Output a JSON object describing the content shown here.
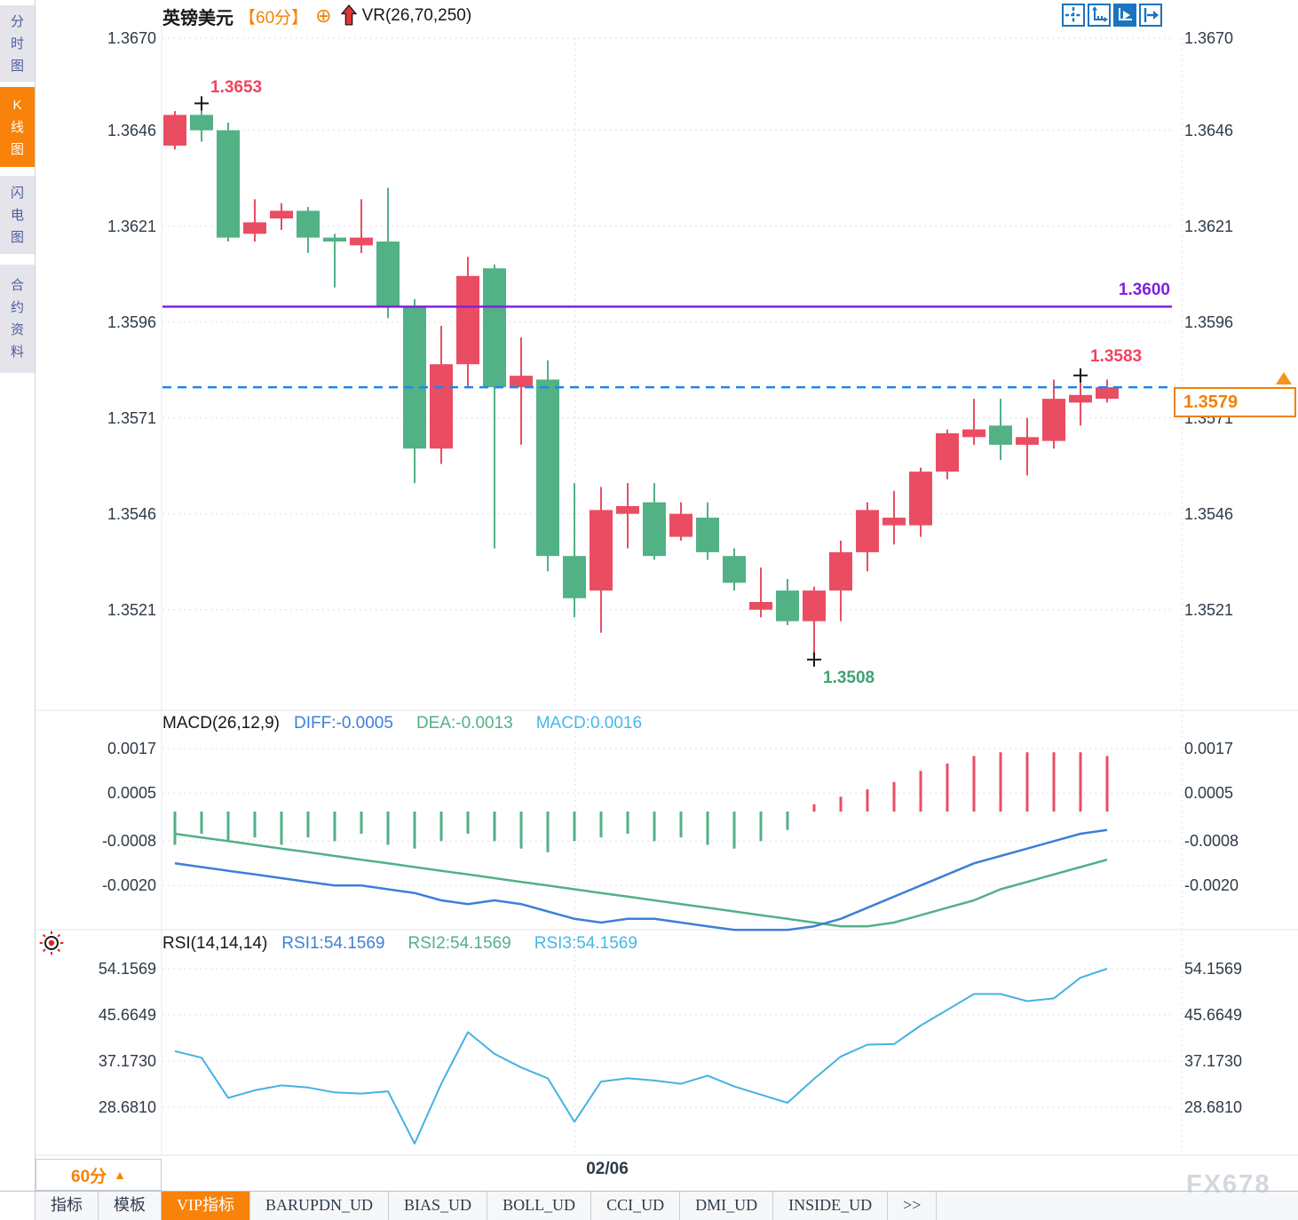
{
  "header": {
    "symbol": "英镑美元",
    "period": "【60分】",
    "link_icon": "⊕",
    "indicator": "VR(26,70,250)"
  },
  "toolbar": {
    "icons": [
      {
        "name": "crosshair-icon",
        "active": false
      },
      {
        "name": "axis-zoom-icon",
        "active": false
      },
      {
        "name": "auto-play-icon",
        "active": true
      },
      {
        "name": "jump-to-latest-icon",
        "active": false
      }
    ]
  },
  "sidebar": {
    "items": [
      {
        "label": "分时图",
        "active": false
      },
      {
        "label": "K线图",
        "active": true
      },
      {
        "label": "闪电图",
        "active": false
      },
      {
        "label": "合约资料",
        "active": false
      }
    ]
  },
  "price_panel": {
    "y_tick_labels": [
      "1.3670",
      "1.3646",
      "1.3621",
      "1.3596",
      "1.3571",
      "1.3546",
      "1.3521"
    ]
  },
  "annotations": {
    "high": "1.3653",
    "low": "1.3508",
    "swing_high": "1.3583",
    "hline": "1.3600",
    "current": "1.3579"
  },
  "macd_panel": {
    "title": "MACD(26,12,9)",
    "diff": "DIFF:-0.0005",
    "dea": "DEA:-0.0013",
    "macd": "MACD:0.0016",
    "y_tick_labels": [
      "0.0017",
      "0.0005",
      "-0.0008",
      "-0.0020"
    ]
  },
  "rsi_panel": {
    "title": "RSI(14,14,14)",
    "rsi1": "RSI1:54.1569",
    "rsi2": "RSI2:54.1569",
    "rsi3": "RSI3:54.1569",
    "y_tick_labels": [
      "54.1569",
      "45.6649",
      "37.1730",
      "28.6810"
    ]
  },
  "time_axis": {
    "date": "02/06",
    "period_button": "60分",
    "caret": "▲"
  },
  "bottom_tabs": {
    "items": [
      {
        "label": "指标",
        "active": false
      },
      {
        "label": "模板",
        "active": false
      },
      {
        "label": "VIP指标",
        "active": true
      },
      {
        "label": "BARUPDN_UD",
        "active": false
      },
      {
        "label": "BIAS_UD",
        "active": false
      },
      {
        "label": "BOLL_UD",
        "active": false
      },
      {
        "label": "CCI_UD",
        "active": false
      },
      {
        "label": "DMI_UD",
        "active": false
      },
      {
        "label": "INSIDE_UD",
        "active": false
      },
      {
        "label": ">>",
        "active": false
      }
    ]
  },
  "watermark": "FX678",
  "colors": {
    "up": "#ea4d62",
    "down": "#52b185",
    "accent": "#f8820a",
    "hline": "#7e22e0",
    "current_line": "#1d86f0",
    "diff_line": "#3d7fd8",
    "dea_line": "#52b185",
    "rsi_line": "#45b2e2"
  },
  "chart_data": [
    {
      "type": "candlestick",
      "title": "英镑美元 60分",
      "y_ticks": [
        1.367,
        1.3646,
        1.3621,
        1.3596,
        1.3571,
        1.3546,
        1.3521
      ],
      "ylim": [
        1.35,
        1.3673
      ],
      "hline_value": 1.36,
      "current_price": 1.3579,
      "high_marker": {
        "index": 1,
        "price": 1.3653
      },
      "low_marker": {
        "index": 24,
        "price": 1.3508
      },
      "swing_high_marker": {
        "index": 34,
        "price": 1.3583
      },
      "x_axis_label": "02/06",
      "ohlc": [
        [
          1.3642,
          1.3651,
          1.3641,
          1.365
        ],
        [
          1.365,
          1.3653,
          1.3643,
          1.3646
        ],
        [
          1.3646,
          1.3648,
          1.3617,
          1.3618
        ],
        [
          1.3619,
          1.3628,
          1.3617,
          1.3622
        ],
        [
          1.3623,
          1.3627,
          1.362,
          1.3625
        ],
        [
          1.3625,
          1.3626,
          1.3614,
          1.3618
        ],
        [
          1.3618,
          1.3619,
          1.3605,
          1.3617
        ],
        [
          1.3616,
          1.3628,
          1.3614,
          1.3618
        ],
        [
          1.3617,
          1.3631,
          1.3597,
          1.36
        ],
        [
          1.36,
          1.3602,
          1.3554,
          1.3563
        ],
        [
          1.3563,
          1.3595,
          1.3559,
          1.3585
        ],
        [
          1.3585,
          1.3613,
          1.3579,
          1.3608
        ],
        [
          1.361,
          1.3611,
          1.3537,
          1.3579
        ],
        [
          1.3579,
          1.3592,
          1.3564,
          1.3582
        ],
        [
          1.3581,
          1.3586,
          1.3531,
          1.3535
        ],
        [
          1.3535,
          1.3554,
          1.3519,
          1.3524
        ],
        [
          1.3526,
          1.3553,
          1.3515,
          1.3547
        ],
        [
          1.3546,
          1.3554,
          1.3537,
          1.3548
        ],
        [
          1.3549,
          1.3554,
          1.3534,
          1.3535
        ],
        [
          1.354,
          1.3549,
          1.3539,
          1.3546
        ],
        [
          1.3545,
          1.3549,
          1.3534,
          1.3536
        ],
        [
          1.3535,
          1.3537,
          1.3526,
          1.3528
        ],
        [
          1.3521,
          1.3532,
          1.3519,
          1.3523
        ],
        [
          1.3526,
          1.3529,
          1.3517,
          1.3518
        ],
        [
          1.3518,
          1.3527,
          1.3508,
          1.3526
        ],
        [
          1.3526,
          1.3539,
          1.3518,
          1.3536
        ],
        [
          1.3536,
          1.3549,
          1.3531,
          1.3547
        ],
        [
          1.3543,
          1.3552,
          1.3538,
          1.3545
        ],
        [
          1.3543,
          1.3558,
          1.354,
          1.3557
        ],
        [
          1.3557,
          1.3568,
          1.3555,
          1.3567
        ],
        [
          1.3566,
          1.3576,
          1.3564,
          1.3568
        ],
        [
          1.3569,
          1.3576,
          1.356,
          1.3564
        ],
        [
          1.3564,
          1.3571,
          1.3556,
          1.3566
        ],
        [
          1.3565,
          1.3581,
          1.3563,
          1.3576
        ],
        [
          1.3575,
          1.3583,
          1.3569,
          1.3577
        ],
        [
          1.3576,
          1.3581,
          1.3575,
          1.3579
        ]
      ]
    },
    {
      "type": "bar",
      "name": "MACD(26,12,9)",
      "y_ticks": [
        0.0017,
        0.0005,
        -0.0008,
        -0.002
      ],
      "histogram": [
        -0.0009,
        -0.0006,
        -0.0008,
        -0.0007,
        -0.0009,
        -0.0007,
        -0.0008,
        -0.0006,
        -0.0009,
        -0.001,
        -0.0008,
        -0.0006,
        -0.0008,
        -0.001,
        -0.0011,
        -0.0008,
        -0.0007,
        -0.0006,
        -0.0008,
        -0.0007,
        -0.0009,
        -0.001,
        -0.0008,
        -0.0005,
        0.0002,
        0.0004,
        0.0006,
        0.0008,
        0.0011,
        0.0013,
        0.0015,
        0.0016,
        0.0016,
        0.0016,
        0.0016,
        0.0015
      ],
      "series": [
        {
          "name": "DIFF",
          "values": [
            -0.0014,
            -0.0015,
            -0.0016,
            -0.0017,
            -0.0018,
            -0.0019,
            -0.002,
            -0.002,
            -0.0021,
            -0.0022,
            -0.0024,
            -0.0025,
            -0.0024,
            -0.0025,
            -0.0027,
            -0.0029,
            -0.003,
            -0.0029,
            -0.0029,
            -0.003,
            -0.0031,
            -0.0032,
            -0.0032,
            -0.0032,
            -0.0031,
            -0.0029,
            -0.0026,
            -0.0023,
            -0.002,
            -0.0017,
            -0.0014,
            -0.0012,
            -0.001,
            -0.0008,
            -0.0006,
            -0.0005
          ]
        },
        {
          "name": "DEA",
          "values": [
            -0.0006,
            -0.0007,
            -0.0008,
            -0.0009,
            -0.001,
            -0.0011,
            -0.0012,
            -0.0013,
            -0.0014,
            -0.0015,
            -0.0016,
            -0.0017,
            -0.0018,
            -0.0019,
            -0.002,
            -0.0021,
            -0.0022,
            -0.0023,
            -0.0024,
            -0.0025,
            -0.0026,
            -0.0027,
            -0.0028,
            -0.0029,
            -0.003,
            -0.0031,
            -0.0031,
            -0.003,
            -0.0028,
            -0.0026,
            -0.0024,
            -0.0021,
            -0.0019,
            -0.0017,
            -0.0015,
            -0.0013
          ]
        }
      ]
    },
    {
      "type": "line",
      "name": "RSI(14,14,14)",
      "y_ticks": [
        54.1569,
        45.6649,
        37.173,
        28.681
      ],
      "series": [
        {
          "name": "RSI1",
          "values": [
            39.0,
            37.8,
            30.4,
            31.8,
            32.7,
            32.3,
            31.4,
            31.2,
            31.6,
            22.0,
            33.0,
            42.5,
            38.5,
            36.0,
            34.0,
            26.0,
            33.4,
            34.0,
            33.6,
            33.0,
            34.5,
            32.5,
            31.0,
            29.5,
            33.9,
            38.0,
            40.2,
            40.3,
            43.7,
            46.6,
            49.5,
            49.5,
            48.2,
            48.7,
            52.5,
            54.1569
          ]
        }
      ]
    }
  ]
}
